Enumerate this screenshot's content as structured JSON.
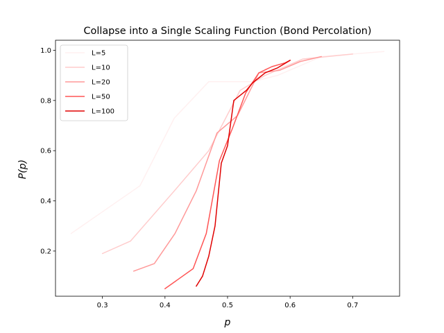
{
  "chart_data": {
    "type": "line",
    "title": "Collapse into a Single Scaling Function (Bond Percolation)",
    "xlabel": "p",
    "ylabel": "P(p)",
    "xlim": [
      0.225,
      0.775
    ],
    "ylim": [
      0.02,
      1.04
    ],
    "xticks": [
      0.3,
      0.4,
      0.5,
      0.6,
      0.7
    ],
    "yticks": [
      0.2,
      0.4,
      0.6,
      0.8,
      1.0
    ],
    "xtick_labels": [
      "0.3",
      "0.4",
      "0.5",
      "0.6",
      "0.7"
    ],
    "ytick_labels": [
      "0.2",
      "0.4",
      "0.6",
      "0.8",
      "1.0"
    ],
    "grid": false,
    "legend_position": "top-left",
    "series": [
      {
        "name": "L=5",
        "color": "#fff0f0",
        "x": [
          0.25,
          0.36,
          0.415,
          0.47,
          0.54,
          0.58,
          0.65,
          0.75
        ],
        "y": [
          0.27,
          0.46,
          0.73,
          0.875,
          0.875,
          0.9,
          0.975,
          0.995
        ]
      },
      {
        "name": "L=10",
        "color": "#ffcccc",
        "x": [
          0.3,
          0.345,
          0.415,
          0.47,
          0.52,
          0.56,
          0.62,
          0.7
        ],
        "y": [
          0.19,
          0.24,
          0.44,
          0.6,
          0.84,
          0.9,
          0.965,
          0.985
        ]
      },
      {
        "name": "L=20",
        "color": "#ff9999",
        "x": [
          0.35,
          0.383,
          0.416,
          0.45,
          0.483,
          0.516,
          0.55,
          0.583,
          0.616,
          0.65
        ],
        "y": [
          0.12,
          0.15,
          0.27,
          0.44,
          0.67,
          0.74,
          0.91,
          0.92,
          0.955,
          0.975
        ]
      },
      {
        "name": "L=50",
        "color": "#ff5555",
        "x": [
          0.4,
          0.445,
          0.466,
          0.487,
          0.508,
          0.529,
          0.55,
          0.571,
          0.592,
          0.6
        ],
        "y": [
          0.05,
          0.13,
          0.27,
          0.56,
          0.69,
          0.83,
          0.91,
          0.935,
          0.95,
          0.96
        ]
      },
      {
        "name": "L=100",
        "color": "#e00000",
        "x": [
          0.45,
          0.46,
          0.47,
          0.48,
          0.49,
          0.5,
          0.51,
          0.52,
          0.53,
          0.54,
          0.55,
          0.56,
          0.57,
          0.58,
          0.59,
          0.6
        ],
        "y": [
          0.06,
          0.1,
          0.18,
          0.3,
          0.55,
          0.62,
          0.8,
          0.82,
          0.84,
          0.87,
          0.89,
          0.91,
          0.92,
          0.93,
          0.945,
          0.96
        ]
      }
    ]
  }
}
